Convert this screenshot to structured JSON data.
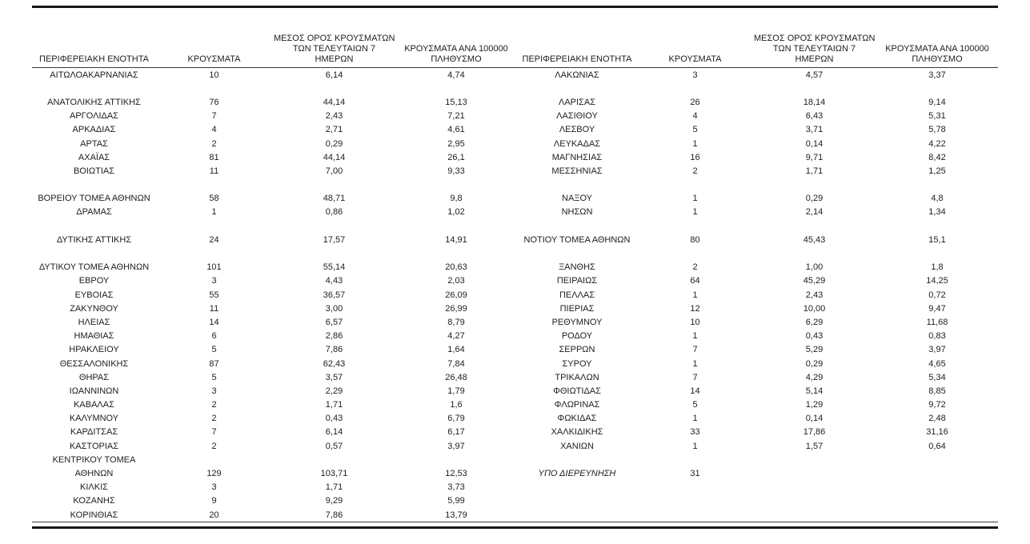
{
  "table": {
    "headers": {
      "region": "ΠΕΡΙΦΕΡΕΙΑΚΗ ΕΝΟΤΗΤΑ",
      "cases": "ΚΡΟΥΣΜΑΤΑ",
      "avg7_lines": [
        "ΜΕΣΟΣ ΟΡΟΣ ΚΡΟΥΣΜΑΤΩΝ",
        "ΤΩΝ ΤΕΛΕΥΤΑΙΩΝ 7",
        "ΗΜΕΡΩΝ"
      ],
      "per100k_lines": [
        "ΚΡΟΥΣΜΑΤΑ ΑΝΑ 100000",
        "ΠΛΗΘΥΣΜΟ"
      ]
    },
    "rows": [
      {
        "left": [
          "ΑΙΤΩΛΟΑΚΑΡΝΑΝΙΑΣ",
          "10",
          "6,14",
          "4,74"
        ],
        "right": [
          "ΛΑΚΩΝΙΑΣ",
          "3",
          "4,57",
          "3,37"
        ]
      },
      {
        "left": [
          "",
          "",
          "",
          ""
        ],
        "right": [
          "",
          "",
          "",
          ""
        ]
      },
      {
        "left": [
          "ΑΝΑΤΟΛΙΚΗΣ ΑΤΤΙΚΗΣ",
          "76",
          "44,14",
          "15,13"
        ],
        "right": [
          "ΛΑΡΙΣΑΣ",
          "26",
          "18,14",
          "9,14"
        ]
      },
      {
        "left": [
          "ΑΡΓΟΛΙΔΑΣ",
          "7",
          "2,43",
          "7,21"
        ],
        "right": [
          "ΛΑΣΙΘΙΟΥ",
          "4",
          "6,43",
          "5,31"
        ]
      },
      {
        "left": [
          "ΑΡΚΑΔΙΑΣ",
          "4",
          "2,71",
          "4,61"
        ],
        "right": [
          "ΛΕΣΒΟΥ",
          "5",
          "3,71",
          "5,78"
        ]
      },
      {
        "left": [
          "ΑΡΤΑΣ",
          "2",
          "0,29",
          "2,95"
        ],
        "right": [
          "ΛΕΥΚΑΔΑΣ",
          "1",
          "0,14",
          "4,22"
        ]
      },
      {
        "left": [
          "ΑΧΑΪΑΣ",
          "81",
          "44,14",
          "26,1"
        ],
        "right": [
          "ΜΑΓΝΗΣΙΑΣ",
          "16",
          "9,71",
          "8,42"
        ]
      },
      {
        "left": [
          "ΒΟΙΩΤΙΑΣ",
          "11",
          "7,00",
          "9,33"
        ],
        "right": [
          "ΜΕΣΣΗΝΙΑΣ",
          "2",
          "1,71",
          "1,25"
        ]
      },
      {
        "left": [
          "",
          "",
          "",
          ""
        ],
        "right": [
          "",
          "",
          "",
          ""
        ]
      },
      {
        "left": [
          "ΒΟΡΕΙΟΥ ΤΟΜΕΑ ΑΘΗΝΩΝ",
          "58",
          "48,71",
          "9,8"
        ],
        "right": [
          "ΝΑΞΟΥ",
          "1",
          "0,29",
          "4,8"
        ]
      },
      {
        "left": [
          "ΔΡΑΜΑΣ",
          "1",
          "0,86",
          "1,02"
        ],
        "right": [
          "ΝΗΣΩΝ",
          "1",
          "2,14",
          "1,34"
        ]
      },
      {
        "left": [
          "",
          "",
          "",
          ""
        ],
        "right": [
          "",
          "",
          "",
          ""
        ]
      },
      {
        "left": [
          "ΔΥΤΙΚΗΣ ΑΤΤΙΚΗΣ",
          "24",
          "17,57",
          "14,91"
        ],
        "right": [
          "ΝΟΤΙΟΥ ΤΟΜΕΑ ΑΘΗΝΩΝ",
          "80",
          "45,43",
          "15,1"
        ]
      },
      {
        "left": [
          "",
          "",
          "",
          ""
        ],
        "right": [
          "",
          "",
          "",
          ""
        ]
      },
      {
        "left": [
          "ΔΥΤΙΚΟΥ ΤΟΜΕΑ ΑΘΗΝΩΝ",
          "101",
          "55,14",
          "20,63"
        ],
        "right": [
          "ΞΑΝΘΗΣ",
          "2",
          "1,00",
          "1,8"
        ]
      },
      {
        "left": [
          "ΕΒΡΟΥ",
          "3",
          "4,43",
          "2,03"
        ],
        "right": [
          "ΠΕΙΡΑΙΩΣ",
          "64",
          "45,29",
          "14,25"
        ]
      },
      {
        "left": [
          "ΕΥΒΟΙΑΣ",
          "55",
          "36,57",
          "26,09"
        ],
        "right": [
          "ΠΕΛΛΑΣ",
          "1",
          "2,43",
          "0,72"
        ]
      },
      {
        "left": [
          "ΖΑΚΥΝΘΟΥ",
          "11",
          "3,00",
          "26,99"
        ],
        "right": [
          "ΠΙΕΡΙΑΣ",
          "12",
          "10,00",
          "9,47"
        ]
      },
      {
        "left": [
          "ΗΛΕΙΑΣ",
          "14",
          "6,57",
          "8,79"
        ],
        "right": [
          "ΡΕΘΥΜΝΟΥ",
          "10",
          "6,29",
          "11,68"
        ]
      },
      {
        "left": [
          "ΗΜΑΘΙΑΣ",
          "6",
          "2,86",
          "4,27"
        ],
        "right": [
          "ΡΟΔΟΥ",
          "1",
          "0,43",
          "0,83"
        ]
      },
      {
        "left": [
          "ΗΡΑΚΛΕΙΟΥ",
          "5",
          "7,86",
          "1,64"
        ],
        "right": [
          "ΣΕΡΡΩΝ",
          "7",
          "5,29",
          "3,97"
        ]
      },
      {
        "left": [
          "ΘΕΣΣΑΛΟΝΙΚΗΣ",
          "87",
          "62,43",
          "7,84"
        ],
        "right": [
          "ΣΥΡΟΥ",
          "1",
          "0,29",
          "4,65"
        ]
      },
      {
        "left": [
          "ΘΗΡΑΣ",
          "5",
          "3,57",
          "26,48"
        ],
        "right": [
          "ΤΡΙΚΑΛΩΝ",
          "7",
          "4,29",
          "5,34"
        ]
      },
      {
        "left": [
          "ΙΩΑΝΝΙΝΩΝ",
          "3",
          "2,29",
          "1,79"
        ],
        "right": [
          "ΦΘΙΩΤΙΔΑΣ",
          "14",
          "5,14",
          "8,85"
        ]
      },
      {
        "left": [
          "ΚΑΒΑΛΑΣ",
          "2",
          "1,71",
          "1,6"
        ],
        "right": [
          "ΦΛΩΡΙΝΑΣ",
          "5",
          "1,29",
          "9,72"
        ]
      },
      {
        "left": [
          "ΚΑΛΥΜΝΟΥ",
          "2",
          "0,43",
          "6,79"
        ],
        "right": [
          "ΦΩΚΙΔΑΣ",
          "1",
          "0,14",
          "2,48"
        ]
      },
      {
        "left": [
          "ΚΑΡΔΙΤΣΑΣ",
          "7",
          "6,14",
          "6,17"
        ],
        "right": [
          "ΧΑΛΚΙΔΙΚΗΣ",
          "33",
          "17,86",
          "31,16"
        ]
      },
      {
        "left": [
          "ΚΑΣΤΟΡΙΑΣ",
          "2",
          "0,57",
          "3,97"
        ],
        "right": [
          "ΧΑΝΙΩΝ",
          "1",
          "1,57",
          "0,64"
        ]
      },
      {
        "left": [
          "ΚΕΝΤΡΙΚΟΥ ΤΟΜΕΑ",
          "",
          "",
          ""
        ],
        "right": [
          "",
          "",
          "",
          ""
        ]
      },
      {
        "left": [
          "ΑΘΗΝΩΝ",
          "129",
          "103,71",
          "12,53"
        ],
        "right": [
          "ΥΠΟ ΔΙΕΡΕΥΝΗΣΗ",
          "31",
          "",
          ""
        ],
        "right_region_italic": true
      },
      {
        "left": [
          "ΚΙΛΚΙΣ",
          "3",
          "1,71",
          "3,73"
        ],
        "right": [
          "",
          "",
          "",
          ""
        ]
      },
      {
        "left": [
          "ΚΟΖΑΝΗΣ",
          "9",
          "9,29",
          "5,99"
        ],
        "right": [
          "",
          "",
          "",
          ""
        ]
      },
      {
        "left": [
          "ΚΟΡΙΝΘΙΑΣ",
          "20",
          "7,86",
          "13,79"
        ],
        "right": [
          "",
          "",
          "",
          ""
        ]
      }
    ]
  }
}
